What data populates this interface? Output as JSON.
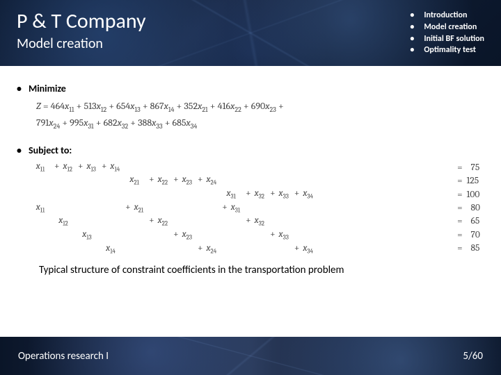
{
  "header": {
    "title": "P & T Company",
    "subtitle": "Model creation",
    "agenda": [
      "Introduction",
      "Model creation",
      "Initial BF solution",
      "Optimality test"
    ]
  },
  "sections": {
    "minimize_label": "Minimize",
    "subject_label": "Subject to:"
  },
  "objective": {
    "prefix": "Z =",
    "terms": [
      {
        "c": 464,
        "s": "11"
      },
      {
        "c": 513,
        "s": "12"
      },
      {
        "c": 654,
        "s": "13"
      },
      {
        "c": 867,
        "s": "14"
      },
      {
        "c": 352,
        "s": "21"
      },
      {
        "c": 416,
        "s": "22"
      },
      {
        "c": 690,
        "s": "23"
      },
      {
        "c": 791,
        "s": "24"
      },
      {
        "c": 995,
        "s": "31"
      },
      {
        "c": 682,
        "s": "32"
      },
      {
        "c": 388,
        "s": "33"
      },
      {
        "c": 685,
        "s": "34"
      }
    ]
  },
  "constraints": {
    "rows": [
      [
        "x11",
        "+ x12",
        "+ x13",
        "+ x14",
        "",
        "",
        "",
        "",
        "",
        "",
        "",
        ""
      ],
      [
        "",
        "",
        "",
        "",
        "x21",
        "+ x22",
        "+ x23",
        "+ x24",
        "",
        "",
        "",
        ""
      ],
      [
        "",
        "",
        "",
        "",
        "",
        "",
        "",
        "",
        "x31",
        "+ x32",
        "+ x33",
        "+ x34"
      ],
      [
        "x11",
        "",
        "",
        "",
        "+ x21",
        "",
        "",
        "",
        "+ x31",
        "",
        "",
        ""
      ],
      [
        "",
        "x12",
        "",
        "",
        "",
        "+ x22",
        "",
        "",
        "",
        "+ x32",
        "",
        ""
      ],
      [
        "",
        "",
        "x13",
        "",
        "",
        "",
        "+ x23",
        "",
        "",
        "",
        "+ x33",
        ""
      ],
      [
        "",
        "",
        "",
        "x14",
        "",
        "",
        "",
        "+ x24",
        "",
        "",
        "",
        "+ x34"
      ]
    ],
    "rhs": [
      75,
      125,
      100,
      80,
      65,
      70,
      85
    ]
  },
  "caption": "Typical structure of constraint coefficients in the transportation problem",
  "footer": {
    "left": "Operations research I",
    "page": "5/60"
  },
  "colors": {
    "header_bg": "#0a1830",
    "text_math": "#444444"
  }
}
